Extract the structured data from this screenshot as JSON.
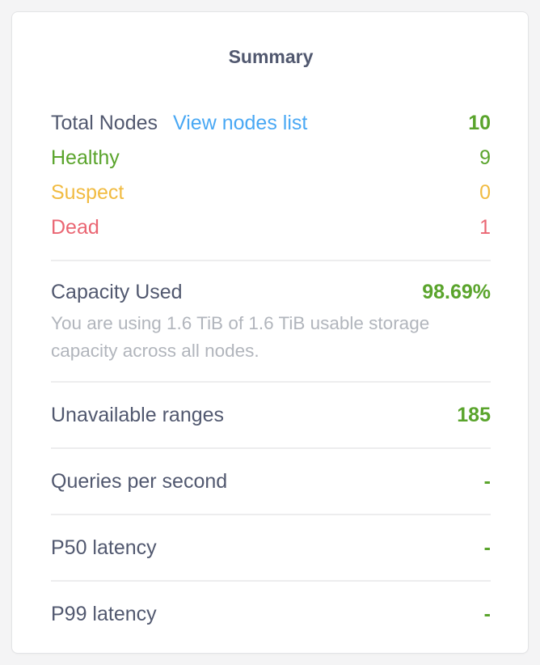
{
  "panel": {
    "title": "Summary"
  },
  "nodes": {
    "total_label": "Total Nodes",
    "view_link": "View nodes list",
    "total_value": "10",
    "rows": [
      {
        "label": "Healthy",
        "value": "9"
      },
      {
        "label": "Suspect",
        "value": "0"
      },
      {
        "label": "Dead",
        "value": "1"
      }
    ]
  },
  "capacity": {
    "label": "Capacity Used",
    "value": "98.69%",
    "description": "You are using 1.6 TiB of 1.6 TiB usable storage capacity across all nodes."
  },
  "metrics": [
    {
      "label": "Unavailable ranges",
      "value": "185"
    },
    {
      "label": "Queries per second",
      "value": "-"
    },
    {
      "label": "P50 latency",
      "value": "-"
    },
    {
      "label": "P99 latency",
      "value": "-"
    }
  ],
  "colors": {
    "healthy_green": "#5aa42c",
    "suspect_yellow": "#f1bb41",
    "dead_pink": "#ea6673",
    "link_blue": "#49a8f4",
    "text_slate": "#51586f",
    "muted_gray": "#b1b5bc"
  }
}
